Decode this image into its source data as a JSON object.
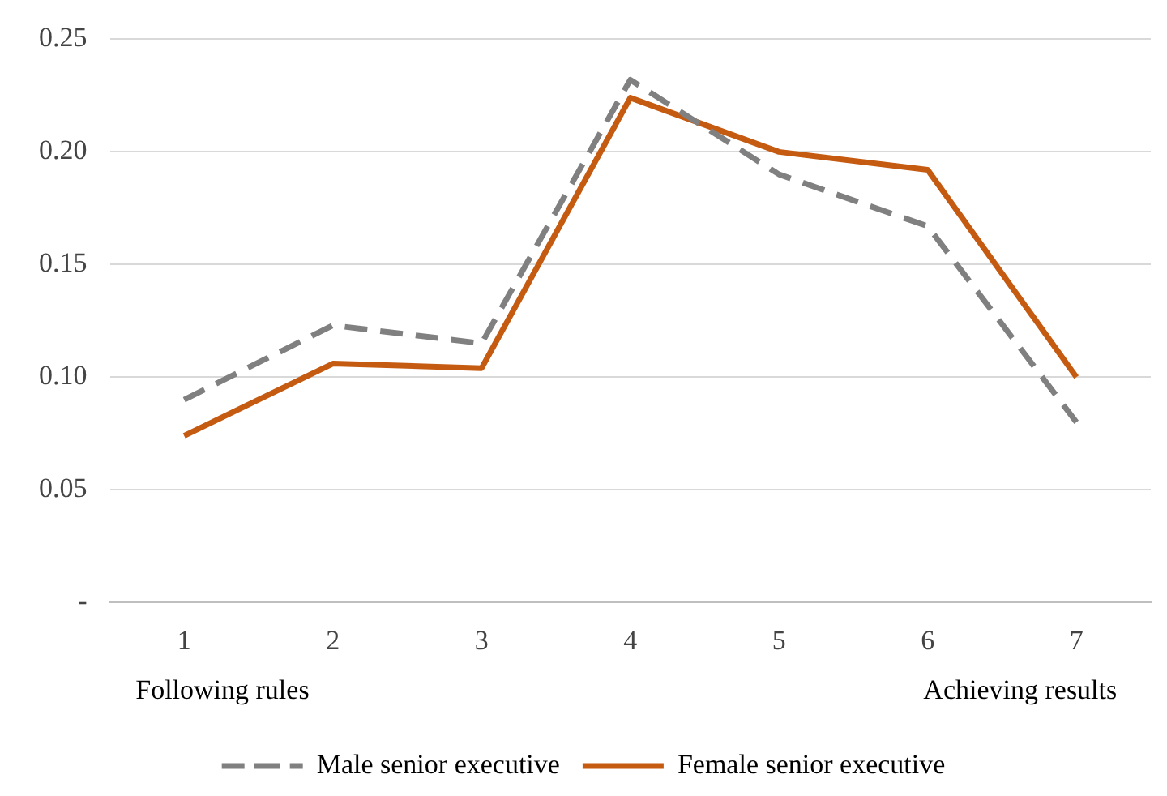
{
  "chart_data": {
    "type": "line",
    "categories": [
      "1",
      "2",
      "3",
      "4",
      "5",
      "6",
      "7"
    ],
    "series": [
      {
        "name": "Male senior executive",
        "color": "#808080",
        "line_style": "dashed",
        "values": [
          0.09,
          0.123,
          0.115,
          0.232,
          0.19,
          0.167,
          0.08
        ]
      },
      {
        "name": "Female senior executive",
        "color": "#c55a11",
        "line_style": "solid",
        "values": [
          0.074,
          0.106,
          0.104,
          0.224,
          0.2,
          0.192,
          0.1
        ]
      }
    ],
    "ylim": [
      0,
      0.25
    ],
    "yticks": [
      {
        "value": 0,
        "label": "-"
      },
      {
        "value": 0.05,
        "label": "0.05"
      },
      {
        "value": 0.1,
        "label": "0.10"
      },
      {
        "value": 0.15,
        "label": "0.15"
      },
      {
        "value": 0.2,
        "label": "0.20"
      },
      {
        "value": 0.25,
        "label": "0.25"
      }
    ],
    "grid": "y",
    "legend": "bottom",
    "marker": "none",
    "annotations": [
      "Following rules",
      "Achieving results"
    ]
  }
}
